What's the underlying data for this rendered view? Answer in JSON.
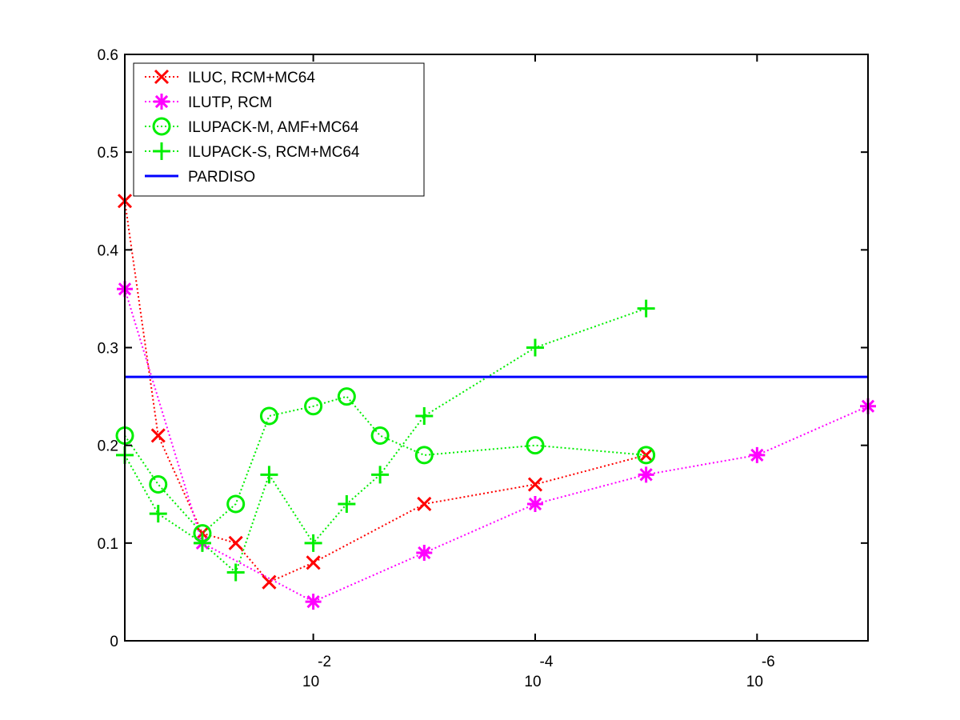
{
  "chart_data": {
    "type": "line",
    "title": "",
    "xlabel": "",
    "ylabel": "",
    "x_scale": "log",
    "x_direction": "decreasing",
    "x_tick_labels": [
      {
        "base": "10",
        "exp": "-2",
        "value": 0.01
      },
      {
        "base": "10",
        "exp": "-4",
        "value": 0.0001
      },
      {
        "base": "10",
        "exp": "-6",
        "value": 1e-06
      }
    ],
    "xlim": [
      0.5,
      1e-07
    ],
    "ylim": [
      0,
      0.6
    ],
    "y_ticks": [
      "0",
      "0.1",
      "0.2",
      "0.3",
      "0.4",
      "0.5",
      "0.6"
    ],
    "grid": false,
    "legend_location": "top-left",
    "series": [
      {
        "name": "ILUC, RCM+MC64",
        "color": "#ff0000",
        "marker": "x",
        "linestyle": "dotted",
        "x": [
          0.5,
          0.25,
          0.1,
          0.05,
          0.025,
          0.01,
          0.001,
          0.0001,
          1e-05
        ],
        "y": [
          0.45,
          0.21,
          0.11,
          0.1,
          0.06,
          0.08,
          0.14,
          0.16,
          0.19
        ]
      },
      {
        "name": "ILUTP, RCM",
        "color": "#ff00ff",
        "marker": "star",
        "linestyle": "dotted",
        "x": [
          0.5,
          0.1,
          0.01,
          0.001,
          0.0001,
          1e-05,
          1e-06,
          1e-07
        ],
        "y": [
          0.36,
          0.1,
          0.04,
          0.09,
          0.14,
          0.17,
          0.19,
          0.24
        ]
      },
      {
        "name": "ILUPACK-M, AMF+MC64",
        "color": "#00ee00",
        "marker": "circle",
        "linestyle": "dotted",
        "x": [
          0.5,
          0.25,
          0.1,
          0.05,
          0.025,
          0.01,
          0.005,
          0.0025,
          0.001,
          0.0001,
          1e-05
        ],
        "y": [
          0.21,
          0.16,
          0.11,
          0.14,
          0.23,
          0.24,
          0.25,
          0.21,
          0.19,
          0.2,
          0.19
        ]
      },
      {
        "name": "ILUPACK-S, RCM+MC64",
        "color": "#00ee00",
        "marker": "plus",
        "linestyle": "dotted",
        "x": [
          0.5,
          0.25,
          0.1,
          0.05,
          0.025,
          0.01,
          0.005,
          0.0025,
          0.001,
          0.0001,
          1e-05
        ],
        "y": [
          0.19,
          0.13,
          0.1,
          0.07,
          0.17,
          0.1,
          0.14,
          0.17,
          0.23,
          0.3,
          0.34
        ]
      },
      {
        "name": "PARDISO",
        "color": "#0000ff",
        "marker": "none",
        "linestyle": "solid",
        "x": [
          0.5,
          1e-07
        ],
        "y": [
          0.27,
          0.27
        ]
      }
    ]
  }
}
